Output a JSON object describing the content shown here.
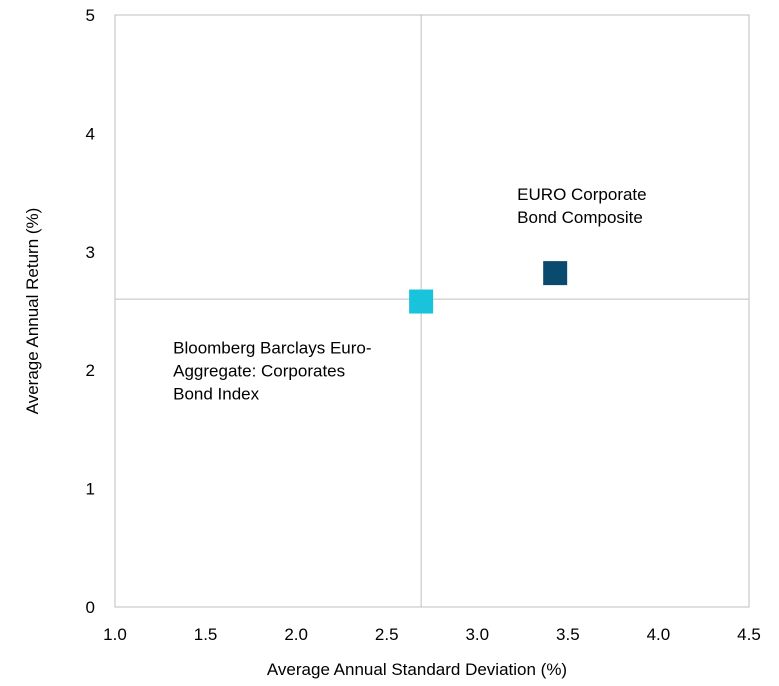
{
  "chart_data": {
    "type": "scatter",
    "title": "",
    "xlabel": "Average Annual Standard Deviation (%)",
    "ylabel": "Average Annual Return (%)",
    "xlim": [
      1.0,
      4.5
    ],
    "ylim": [
      0,
      5
    ],
    "x_ticks": [
      "1.0",
      "1.5",
      "2.0",
      "2.5",
      "3.0",
      "3.5",
      "4.0",
      "4.5"
    ],
    "y_ticks": [
      "0",
      "1",
      "2",
      "3",
      "4",
      "5"
    ],
    "grid": false,
    "reference_lines": {
      "x": 2.69,
      "y": 2.6
    },
    "points": [
      {
        "label_lines": [
          "EURO Corporate",
          "Bond Composite"
        ],
        "x": 3.43,
        "y": 2.82,
        "color": "#0b4a6f",
        "marker": "square"
      },
      {
        "label_lines": [
          "Bloomberg Barclays Euro-",
          "Aggregate: Corporates",
          "Bond Index"
        ],
        "x": 2.69,
        "y": 2.58,
        "color": "#19c3dc",
        "marker": "square"
      }
    ],
    "frame_color": "#bfbfbf",
    "reference_line_color": "#bfbfbf"
  }
}
